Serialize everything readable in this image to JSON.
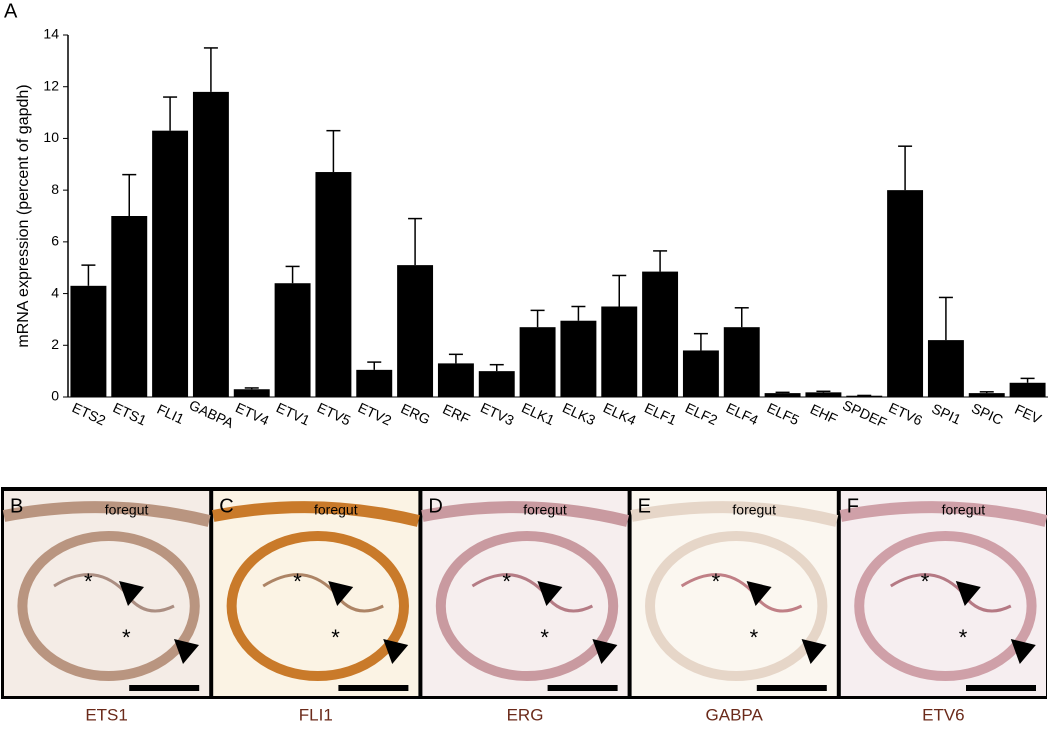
{
  "chart_data": {
    "type": "bar",
    "panel_letter": "A",
    "y_label": "mRNA expression (percent of gapdh)",
    "categories": [
      "ETS2",
      "ETS1",
      "FLI1",
      "GABPA",
      "ETV4",
      "ETV1",
      "ETV5",
      "ETV2",
      "ERG",
      "ERF",
      "ETV3",
      "ELK1",
      "ELK3",
      "ELK4",
      "ELF1",
      "ELF2",
      "ELF4",
      "ELF5",
      "EHF",
      "SPDEF",
      "ETV6",
      "SPI1",
      "SPIC",
      "FEV"
    ],
    "values": [
      4.3,
      7.0,
      10.3,
      11.8,
      0.3,
      4.4,
      8.7,
      1.05,
      5.1,
      1.3,
      1.0,
      2.7,
      2.95,
      3.5,
      4.85,
      1.8,
      2.7,
      0.15,
      0.18,
      0.05,
      8.0,
      2.2,
      0.15,
      0.55
    ],
    "errors": [
      0.8,
      1.6,
      1.3,
      1.7,
      0.05,
      0.65,
      1.6,
      0.3,
      1.8,
      0.35,
      0.25,
      0.65,
      0.55,
      1.2,
      0.8,
      0.65,
      0.75,
      0.03,
      0.04,
      0.01,
      1.7,
      1.65,
      0.05,
      0.17
    ],
    "color": "#000000",
    "ylim": [
      0,
      14
    ],
    "yticks": [
      0,
      2,
      4,
      6,
      8,
      10,
      12,
      14
    ]
  },
  "panels": [
    {
      "letter": "B",
      "caption": "ETS1",
      "region": "foregut",
      "asterisks": [
        "*",
        "*"
      ]
    },
    {
      "letter": "C",
      "caption": "FLI1",
      "region": "foregut",
      "asterisks": [
        "*",
        "*"
      ]
    },
    {
      "letter": "D",
      "caption": "ERG",
      "region": "foregut",
      "asterisks": [
        "*",
        "*"
      ]
    },
    {
      "letter": "E",
      "caption": "GABPA",
      "region": "foregut",
      "asterisks": [
        "*",
        "*"
      ]
    },
    {
      "letter": "F",
      "caption": "ETV6",
      "region": "foregut",
      "asterisks": [
        "*",
        "*"
      ]
    }
  ]
}
